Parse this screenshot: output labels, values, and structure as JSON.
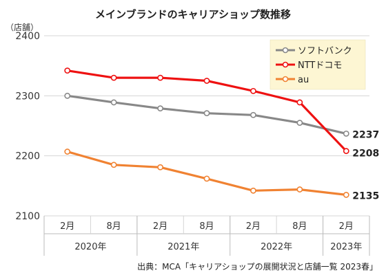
{
  "chart_data": {
    "type": "line",
    "title": "メインブランドのキャリアショップ数推移",
    "ylabel": "（店舗）",
    "ylim": [
      2100,
      2400
    ],
    "yticks": [
      2100,
      2200,
      2300,
      2400
    ],
    "categories": [
      "2月",
      "8月",
      "2月",
      "8月",
      "2月",
      "8月",
      "2月"
    ],
    "years": [
      "2020年",
      "2021年",
      "2022年",
      "2023年"
    ],
    "series": [
      {
        "name": "ソフトバンク",
        "color": "#888888",
        "values": [
          2300,
          2289,
          2279,
          2271,
          2268,
          2255,
          2237
        ],
        "end_label": "2237"
      },
      {
        "name": "NTTドコモ",
        "color": "#ee1111",
        "values": [
          2342,
          2330,
          2330,
          2325,
          2308,
          2289,
          2208
        ],
        "end_label": "2208"
      },
      {
        "name": "au",
        "color": "#f08232",
        "values": [
          2207,
          2185,
          2181,
          2162,
          2142,
          2144,
          2135
        ],
        "end_label": "2135"
      }
    ],
    "legend_position": "top-right",
    "grid": true,
    "source_note": "出典：MCA「キャリアショップの展開状況と店舗一覧 2023春」"
  }
}
